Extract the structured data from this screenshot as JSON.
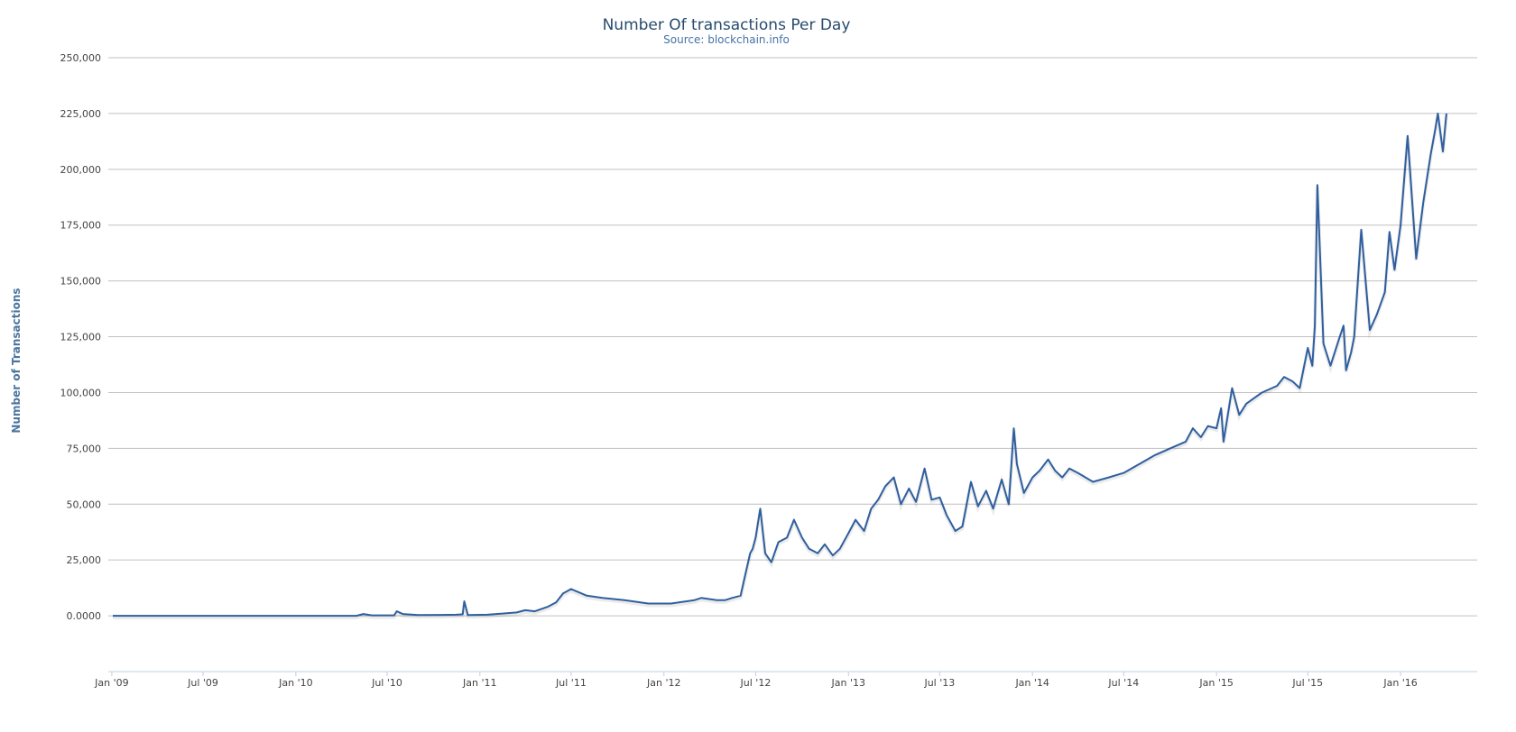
{
  "chart_data": {
    "type": "line",
    "title": "Number Of transactions Per Day",
    "subtitle": "Source: blockchain.info",
    "xlabel": "",
    "ylabel": "Number of Transactions",
    "ylim": [
      -25000,
      250000
    ],
    "xlim": [
      "2008-12-25",
      "2016-06-01"
    ],
    "y_ticks": [
      0,
      25000,
      50000,
      75000,
      100000,
      125000,
      150000,
      175000,
      200000,
      225000,
      250000
    ],
    "y_tick_labels": [
      "0.0000",
      "25,000",
      "50,000",
      "75,000",
      "100,000",
      "125,000",
      "150,000",
      "175,000",
      "200,000",
      "225,000",
      "250,000"
    ],
    "x_ticks": [
      "2009-01-01",
      "2009-07-01",
      "2010-01-01",
      "2010-07-01",
      "2011-01-01",
      "2011-07-01",
      "2012-01-01",
      "2012-07-01",
      "2013-01-01",
      "2013-07-01",
      "2014-01-01",
      "2014-07-01",
      "2015-01-01",
      "2015-07-01",
      "2016-01-01"
    ],
    "x_tick_labels": [
      "Jan '09",
      "Jul '09",
      "Jan '10",
      "Jul '10",
      "Jan '11",
      "Jul '11",
      "Jan '12",
      "Jul '12",
      "Jan '13",
      "Jul '13",
      "Jan '14",
      "Jul '14",
      "Jan '15",
      "Jul '15",
      "Jan '16"
    ],
    "grid": true,
    "legend": "none",
    "color": "#2f5f9e",
    "series": [
      {
        "x": [
          "2009-01-03",
          "2009-03-01",
          "2009-06-01",
          "2009-09-01",
          "2009-12-01",
          "2010-03-01",
          "2010-05-01",
          "2010-05-15",
          "2010-06-01",
          "2010-07-15",
          "2010-07-20",
          "2010-08-01",
          "2010-09-01",
          "2010-10-15",
          "2010-11-15",
          "2010-11-28",
          "2010-12-01",
          "2010-12-08",
          "2011-01-15",
          "2011-02-15",
          "2011-03-15",
          "2011-04-01",
          "2011-04-20",
          "2011-05-15",
          "2011-06-01",
          "2011-06-15",
          "2011-07-01",
          "2011-08-01",
          "2011-09-01",
          "2011-10-15",
          "2011-12-01",
          "2012-01-15",
          "2012-02-15",
          "2012-03-01",
          "2012-03-15",
          "2012-04-15",
          "2012-05-01",
          "2012-05-15",
          "2012-06-01",
          "2012-06-10",
          "2012-06-20",
          "2012-06-25",
          "2012-07-01",
          "2012-07-10",
          "2012-07-20",
          "2012-08-01",
          "2012-08-15",
          "2012-09-01",
          "2012-09-15",
          "2012-10-01",
          "2012-10-15",
          "2012-11-01",
          "2012-11-15",
          "2012-12-01",
          "2012-12-15",
          "2013-01-01",
          "2013-01-15",
          "2013-02-01",
          "2013-02-15",
          "2013-03-01",
          "2013-03-15",
          "2013-04-01",
          "2013-04-15",
          "2013-05-01",
          "2013-05-15",
          "2013-06-01",
          "2013-06-15",
          "2013-07-01",
          "2013-07-15",
          "2013-08-01",
          "2013-08-15",
          "2013-09-01",
          "2013-09-15",
          "2013-10-01",
          "2013-10-15",
          "2013-11-01",
          "2013-11-15",
          "2013-11-25",
          "2013-12-01",
          "2013-12-15",
          "2014-01-01",
          "2014-01-15",
          "2014-02-01",
          "2014-02-15",
          "2014-03-01",
          "2014-03-15",
          "2014-04-01",
          "2014-05-01",
          "2014-06-01",
          "2014-07-01",
          "2014-08-01",
          "2014-09-01",
          "2014-10-01",
          "2014-11-01",
          "2014-11-15",
          "2014-12-01",
          "2014-12-15",
          "2015-01-01",
          "2015-01-10",
          "2015-01-15",
          "2015-02-01",
          "2015-02-15",
          "2015-03-01",
          "2015-04-01",
          "2015-05-01",
          "2015-05-15",
          "2015-06-01",
          "2015-06-15",
          "2015-07-01",
          "2015-07-10",
          "2015-07-15",
          "2015-07-20",
          "2015-08-01",
          "2015-08-15",
          "2015-09-01",
          "2015-09-10",
          "2015-09-15",
          "2015-09-25",
          "2015-10-01",
          "2015-10-15",
          "2015-11-01",
          "2015-11-15",
          "2015-12-01",
          "2015-12-10",
          "2015-12-20",
          "2016-01-01",
          "2016-01-15",
          "2016-02-01",
          "2016-02-15",
          "2016-03-01",
          "2016-03-10",
          "2016-03-15",
          "2016-03-25",
          "2016-04-01"
        ],
        "y": [
          0,
          0,
          0,
          0,
          0,
          0,
          0,
          800,
          200,
          200,
          2000,
          800,
          300,
          400,
          500,
          700,
          6500,
          300,
          500,
          1000,
          1500,
          2500,
          2000,
          4000,
          6000,
          10000,
          12000,
          9000,
          8000,
          7000,
          5500,
          5500,
          6500,
          7000,
          8000,
          7000,
          7000,
          8000,
          9000,
          18000,
          28000,
          30000,
          35000,
          48000,
          28000,
          24000,
          33000,
          35000,
          43000,
          35000,
          30000,
          28000,
          32000,
          27000,
          30000,
          37000,
          43000,
          38000,
          48000,
          52000,
          58000,
          62000,
          50000,
          57000,
          51000,
          66000,
          52000,
          53000,
          45000,
          38000,
          40000,
          60000,
          49000,
          56000,
          48000,
          61000,
          50000,
          84000,
          68000,
          55000,
          62000,
          65000,
          70000,
          65000,
          62000,
          66000,
          64000,
          60000,
          62000,
          64000,
          68000,
          72000,
          75000,
          78000,
          84000,
          80000,
          85000,
          84000,
          93000,
          78000,
          102000,
          90000,
          95000,
          100000,
          103000,
          107000,
          105000,
          102000,
          120000,
          112000,
          130000,
          193000,
          122000,
          112000,
          124000,
          130000,
          110000,
          118000,
          125000,
          173000,
          128000,
          135000,
          145000,
          172000,
          155000,
          175000,
          215000,
          160000,
          185000,
          207000,
          218000,
          225000,
          208000,
          225000
        ]
      }
    ]
  }
}
